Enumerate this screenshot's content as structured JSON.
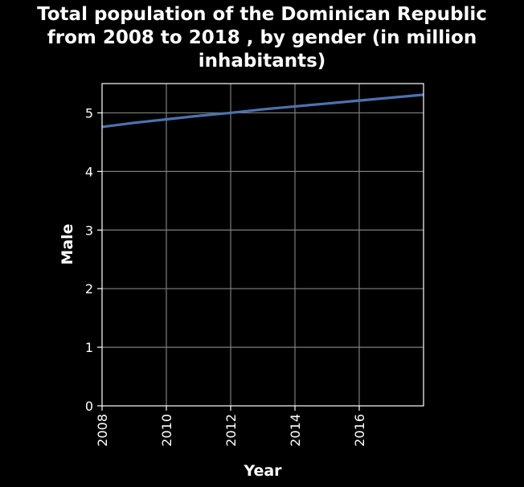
{
  "chart_data": {
    "type": "line",
    "title_lines": [
      "Total population of the Dominican Republic",
      "from 2008 to 2018 , by gender (in million",
      "inhabitants)"
    ],
    "xlabel": "Year",
    "ylabel": "Male",
    "xlim": [
      2008,
      2018
    ],
    "ylim": [
      0,
      5.5
    ],
    "x_ticks": [
      2008,
      2010,
      2012,
      2014,
      2016
    ],
    "y_ticks": [
      0,
      1,
      2,
      3,
      4,
      5
    ],
    "grid": true,
    "series": [
      {
        "color": "#4c72b0",
        "x": [
          2008,
          2009,
          2010,
          2011,
          2012,
          2013,
          2014,
          2015,
          2016,
          2017,
          2018
        ],
        "values": [
          4.76,
          4.83,
          4.89,
          4.95,
          5.0,
          5.06,
          5.11,
          5.16,
          5.21,
          5.26,
          5.31
        ]
      }
    ]
  }
}
